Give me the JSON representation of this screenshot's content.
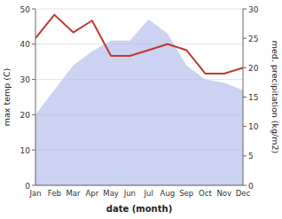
{
  "chart_data": {
    "type": "area",
    "xlabel": "date (month)",
    "ylabel": "max temp (C)",
    "y2label": "med. precipitation (kg/m2)",
    "categories": [
      "Jan",
      "Feb",
      "Mar",
      "Apr",
      "May",
      "Jun",
      "Jul",
      "Aug",
      "Sep",
      "Oct",
      "Nov",
      "Dec"
    ],
    "series": [
      {
        "type": "area",
        "color": "#aab4e8",
        "values": [
          20,
          27,
          34,
          38,
          41,
          41,
          47,
          43,
          34,
          30,
          29,
          27
        ]
      },
      {
        "type": "line",
        "color": "#c0392b",
        "axis": "y2",
        "values": [
          25,
          29,
          26,
          28,
          22,
          22,
          23,
          24,
          23,
          19,
          19,
          20
        ]
      }
    ],
    "ylim": [
      0,
      50
    ],
    "yticks": [
      0,
      10,
      20,
      30,
      40,
      50
    ],
    "y2lim": [
      0,
      30
    ],
    "y2ticks": [
      0,
      5,
      10,
      15,
      20,
      25,
      30
    ],
    "grid": true
  }
}
